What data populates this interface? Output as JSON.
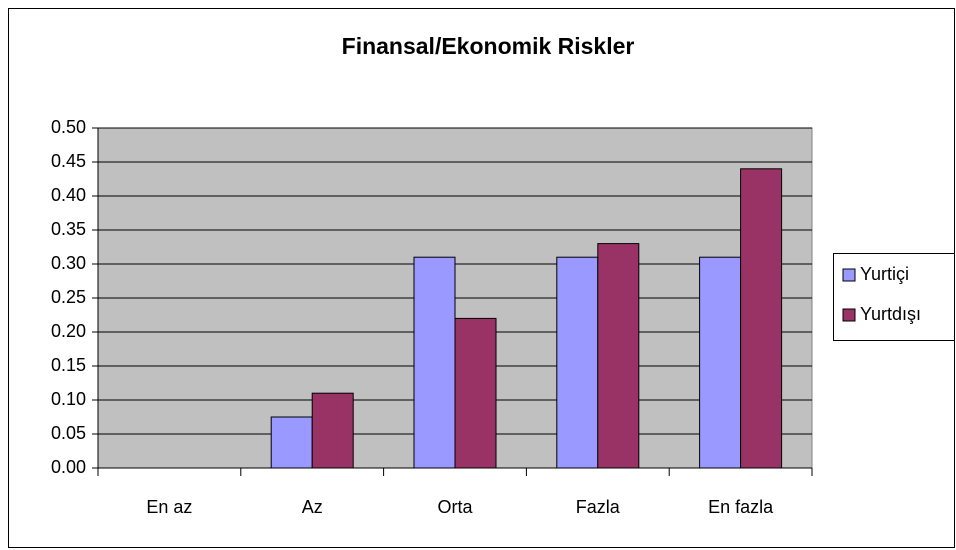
{
  "chart_data": {
    "type": "bar",
    "title": "Finansal/Ekonomik Riskler",
    "categories": [
      "En az",
      "Az",
      "Orta",
      "Fazla",
      "En fazla"
    ],
    "series": [
      {
        "name": "Yurtiçi",
        "color": "#9999ff",
        "values": [
          0,
          0.075,
          0.31,
          0.31,
          0.31
        ]
      },
      {
        "name": "Yurtdışı",
        "color": "#993366",
        "values": [
          0,
          0.11,
          0.22,
          0.33,
          0.44
        ]
      }
    ],
    "ylim": [
      0,
      0.5
    ],
    "yticks": [
      {
        "value": 0,
        "label": "0.00"
      },
      {
        "value": 0.05,
        "label": "0.05"
      },
      {
        "value": 0.1,
        "label": "0.10"
      },
      {
        "value": 0.15,
        "label": "0.15"
      },
      {
        "value": 0.2,
        "label": "0.20"
      },
      {
        "value": 0.25,
        "label": "0.25"
      },
      {
        "value": 0.3,
        "label": "0.30"
      },
      {
        "value": 0.35,
        "label": "0.35"
      },
      {
        "value": 0.4,
        "label": "0.40"
      },
      {
        "value": 0.45,
        "label": "0.45"
      },
      {
        "value": 0.5,
        "label": "0.50"
      }
    ],
    "grid": true,
    "legend": "right"
  }
}
